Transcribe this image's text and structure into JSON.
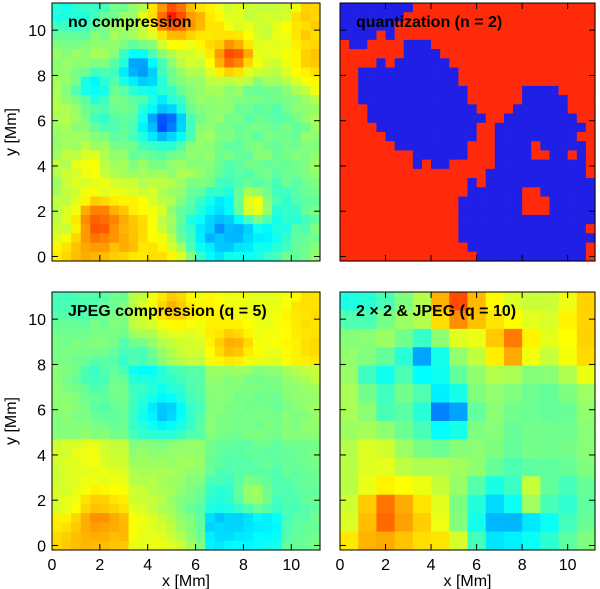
{
  "chart_data": [
    {
      "type": "heatmap",
      "title": "no compression",
      "xlabel": "",
      "ylabel": "y [Mm]",
      "xlim": [
        0,
        11.2
      ],
      "ylim": [
        -0.2,
        11.2
      ],
      "xticks": [],
      "yticks": [
        0,
        2,
        4,
        6,
        8,
        10
      ],
      "colormap": "jet",
      "grid_size": [
        28,
        28
      ],
      "style": "smooth"
    },
    {
      "type": "heatmap",
      "title": "quantization (n = 2)",
      "xlabel": "",
      "ylabel": "",
      "xlim": [
        0,
        11.2
      ],
      "ylim": [
        -0.2,
        11.2
      ],
      "xticks": [],
      "yticks": [],
      "colormap": "binary-red-blue",
      "levels": 2,
      "grid_size": [
        28,
        28
      ],
      "style": "quantized"
    },
    {
      "type": "heatmap",
      "title": "JPEG compression (q = 5)",
      "xlabel": "x [Mm]",
      "ylabel": "y [Mm]",
      "xlim": [
        0,
        11.2
      ],
      "ylim": [
        -0.2,
        11.2
      ],
      "xticks": [
        0,
        2,
        4,
        6,
        8,
        10
      ],
      "yticks": [
        0,
        2,
        4,
        6,
        8,
        10
      ],
      "colormap": "jet",
      "grid_size": [
        28,
        28
      ],
      "style": "blocky"
    },
    {
      "type": "heatmap",
      "title": "2 × 2 & JPEG (q = 10)",
      "xlabel": "x [Mm]",
      "ylabel": "",
      "xlim": [
        0,
        11.2
      ],
      "ylim": [
        -0.2,
        11.2
      ],
      "xticks": [
        0,
        2,
        4,
        6,
        8,
        10
      ],
      "yticks": [],
      "colormap": "jet",
      "grid_size": [
        14,
        14
      ],
      "style": "coarse"
    }
  ],
  "colors": {
    "quant_low": "#1f1fe6",
    "quant_high": "#ff2a0a",
    "axis": "#000000"
  }
}
